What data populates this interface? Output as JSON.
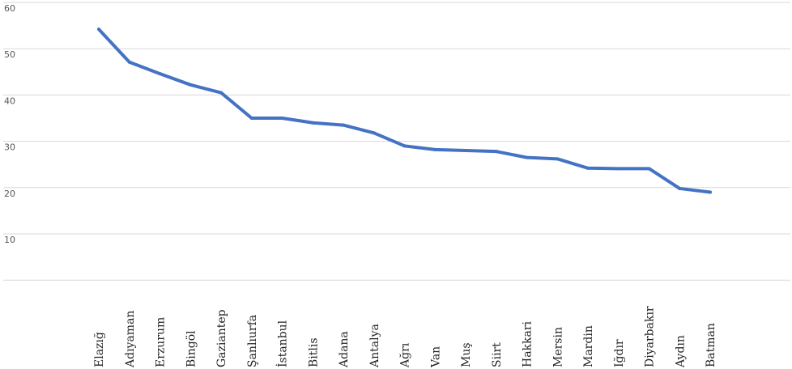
{
  "chart_data": {
    "type": "line",
    "title": "",
    "xlabel": "",
    "ylabel": "",
    "categories": [
      "Elazığ",
      "Adıyaman",
      "Erzurum",
      "Bingöl",
      "Gaziantep",
      "Şanlıurfa",
      "İstanbul",
      "Bitlis",
      "Adana",
      "Antalya",
      "Ağrı",
      "Van",
      "Muş",
      "Siirt",
      "Hakkari",
      "Mersin",
      "Mardin",
      "Iğdır",
      "Diyarbakır",
      "Aydın",
      "Batman"
    ],
    "series": [
      {
        "values": [
          54.2,
          47.1,
          44.6,
          42.2,
          40.5,
          35.0,
          35.0,
          34.0,
          33.5,
          31.8,
          29.0,
          28.2,
          28.0,
          27.8,
          26.5,
          26.2,
          24.2,
          24.1,
          24.1,
          19.8,
          19.0
        ]
      }
    ],
    "yticks": [
      10,
      20,
      30,
      40,
      50,
      60
    ],
    "ylim": [
      0,
      60
    ],
    "grid": true,
    "colors": {
      "line": "#4472C4",
      "grid": "#d9d9d9",
      "tick_text": "#555555"
    }
  }
}
